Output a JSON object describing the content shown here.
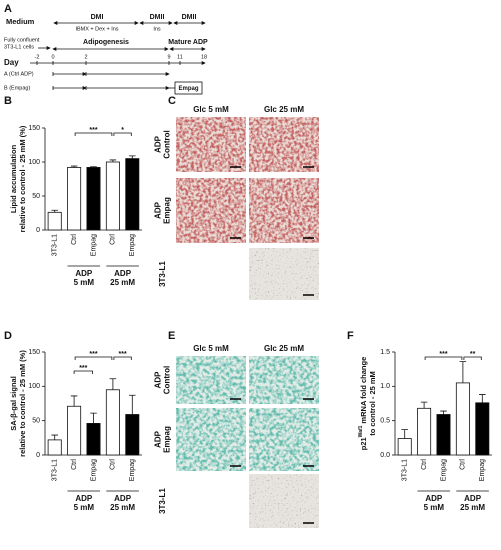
{
  "timeline": {
    "panel": "A",
    "medium": "Medium",
    "media": [
      {
        "name": "DMI",
        "detail": "IBMX + Dex + Ins"
      },
      {
        "name": "DMII",
        "detail": "Ins"
      },
      {
        "name": "DMII"
      }
    ],
    "start": [
      "Fully confluent",
      "3T3-L1 cells"
    ],
    "phases": [
      "Adipogenesis",
      "Mature ADP"
    ],
    "day_label": "Day",
    "days": [
      -2,
      0,
      2,
      9,
      11,
      18
    ],
    "groups": [
      "A (Ctrl ADP)",
      "B (Empag)"
    ],
    "treatment": "Empag"
  },
  "micrographs": [
    {
      "panel": "C",
      "columns": [
        "Glc 5 mM",
        "Glc 25 mM"
      ],
      "rows": [
        [
          "ADP",
          "Control"
        ],
        [
          "ADP",
          "Empag"
        ],
        [
          "3T3-L1"
        ]
      ]
    },
    {
      "panel": "E",
      "columns": [
        "Glc 5 mM",
        "Glc 25 mM"
      ],
      "rows": [
        [
          "ADP",
          "Control"
        ],
        [
          "ADP",
          "Empag"
        ],
        [
          "3T3-L1"
        ]
      ]
    }
  ],
  "chart_data": [
    {
      "type": "bar",
      "panel": "B",
      "ylabel": [
        "Lipid accumulation",
        "relative to control - 25 mM (%)"
      ],
      "categories": [
        "3T3-L1",
        "Ctrl",
        "Empag",
        "Ctrl",
        "Empag"
      ],
      "values": [
        26,
        92,
        92,
        100,
        105
      ],
      "errors": [
        3,
        2,
        1,
        3,
        4
      ],
      "colors": [
        "#ffffff",
        "#ffffff",
        "#000000",
        "#ffffff",
        "#000000"
      ],
      "groups": [
        {
          "name": "ADP",
          "detail": "5 mM"
        },
        {
          "name": "ADP",
          "detail": "25 mM"
        }
      ],
      "annotations": [
        "***",
        "*"
      ],
      "ylim": [
        0,
        150
      ],
      "yticks": [
        0,
        50,
        100,
        150
      ]
    },
    {
      "type": "bar",
      "panel": "D",
      "ylabel": [
        "SA-β-gal signal",
        "relative to control - 25 mM (%)"
      ],
      "categories": [
        "3T3-L1",
        "Ctrl",
        "Empag",
        "Ctrl",
        "Empag"
      ],
      "values": [
        22,
        71,
        46,
        95,
        59
      ],
      "errors": [
        7,
        15,
        15,
        16,
        28
      ],
      "colors": [
        "#ffffff",
        "#ffffff",
        "#000000",
        "#ffffff",
        "#000000"
      ],
      "groups": [
        {
          "name": "ADP",
          "detail": "5 mM"
        },
        {
          "name": "ADP",
          "detail": "25 mM"
        }
      ],
      "annotations": [
        "***",
        "***",
        "***"
      ],
      "ylim": [
        0,
        150
      ],
      "yticks": [
        0,
        50,
        100,
        150
      ]
    },
    {
      "type": "bar",
      "panel": "F",
      "ylabel": [
        "p21",
        "mRNA fold change",
        "to control - 25 mM"
      ],
      "ylabel_sup": "Waf1",
      "categories": [
        "3T3-L1",
        "Ctrl",
        "Empag",
        "Ctrl",
        "Empag"
      ],
      "values": [
        0.24,
        0.68,
        0.59,
        1.05,
        0.76
      ],
      "errors": [
        0.13,
        0.09,
        0.05,
        0.31,
        0.12
      ],
      "colors": [
        "#ffffff",
        "#ffffff",
        "#000000",
        "#ffffff",
        "#000000"
      ],
      "groups": [
        {
          "name": "ADP",
          "detail": "5 mM"
        },
        {
          "name": "ADP",
          "detail": "25 mM"
        }
      ],
      "annotations": [
        "***",
        "**"
      ],
      "ylim": [
        0,
        1.5
      ],
      "yticks": [
        {
          "value": 0,
          "label": "0.0"
        },
        0.5,
        {
          "value": 1,
          "label": "1.0"
        },
        1.5
      ]
    }
  ]
}
